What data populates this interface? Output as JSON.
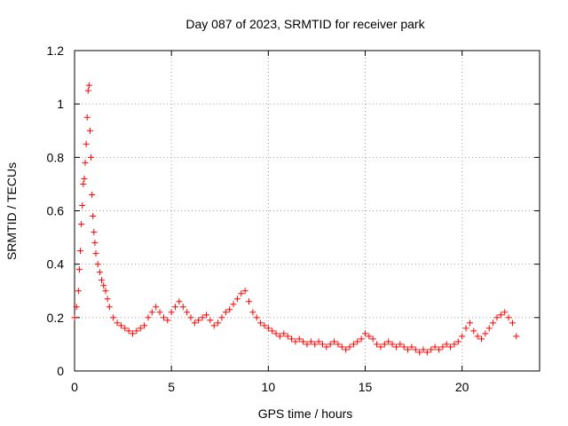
{
  "chart_data": {
    "type": "scatter",
    "title": "Day 087 of 2023, SRMTID for receiver park",
    "xlabel": "GPS time / hours",
    "ylabel": "SRMTID / TECUs",
    "xlim": [
      0,
      24
    ],
    "ylim": [
      0,
      1.2
    ],
    "x_ticks": [
      0,
      5,
      10,
      15,
      20
    ],
    "x_tick_labels": [
      "0",
      "5",
      "10",
      "15",
      "20"
    ],
    "y_ticks": [
      0,
      0.2,
      0.4,
      0.6,
      0.8,
      1.0,
      1.2
    ],
    "y_tick_labels": [
      "0",
      "0.2",
      "0.4",
      "0.6",
      "0.8",
      "1",
      "1.2"
    ],
    "grid": true,
    "marker": "+",
    "color": "#ff0000",
    "series": [
      {
        "name": "SRMTID",
        "x": [
          0.0,
          0.1,
          0.2,
          0.25,
          0.3,
          0.35,
          0.4,
          0.45,
          0.5,
          0.55,
          0.6,
          0.65,
          0.7,
          0.75,
          0.8,
          0.85,
          0.9,
          0.95,
          1.0,
          1.05,
          1.1,
          1.2,
          1.3,
          1.4,
          1.5,
          1.6,
          1.7,
          1.8,
          2.0,
          2.2,
          2.4,
          2.6,
          2.8,
          3.0,
          3.2,
          3.4,
          3.6,
          3.8,
          4.0,
          4.2,
          4.4,
          4.6,
          4.8,
          5.0,
          5.2,
          5.4,
          5.6,
          5.8,
          6.0,
          6.2,
          6.4,
          6.6,
          6.8,
          7.0,
          7.2,
          7.4,
          7.6,
          7.8,
          8.0,
          8.2,
          8.4,
          8.6,
          8.8,
          9.0,
          9.2,
          9.4,
          9.6,
          9.8,
          10.0,
          10.2,
          10.4,
          10.6,
          10.8,
          11.0,
          11.2,
          11.4,
          11.6,
          11.8,
          12.0,
          12.2,
          12.4,
          12.6,
          12.8,
          13.0,
          13.2,
          13.4,
          13.6,
          13.8,
          14.0,
          14.2,
          14.4,
          14.6,
          14.8,
          15.0,
          15.2,
          15.4,
          15.6,
          15.8,
          16.0,
          16.2,
          16.4,
          16.6,
          16.8,
          17.0,
          17.2,
          17.4,
          17.6,
          17.8,
          18.0,
          18.2,
          18.4,
          18.6,
          18.8,
          19.0,
          19.2,
          19.4,
          19.6,
          19.8,
          20.0,
          20.2,
          20.4,
          20.6,
          20.8,
          21.0,
          21.2,
          21.4,
          21.6,
          21.8,
          22.0,
          22.2,
          22.4,
          22.6,
          22.8
        ],
        "y": [
          0.2,
          0.24,
          0.3,
          0.38,
          0.45,
          0.55,
          0.62,
          0.7,
          0.72,
          0.78,
          0.85,
          0.95,
          1.05,
          1.07,
          0.9,
          0.8,
          0.66,
          0.58,
          0.52,
          0.48,
          0.44,
          0.4,
          0.37,
          0.34,
          0.32,
          0.3,
          0.27,
          0.24,
          0.2,
          0.18,
          0.17,
          0.16,
          0.15,
          0.14,
          0.15,
          0.16,
          0.17,
          0.2,
          0.22,
          0.24,
          0.22,
          0.2,
          0.19,
          0.22,
          0.24,
          0.26,
          0.24,
          0.22,
          0.2,
          0.18,
          0.19,
          0.2,
          0.21,
          0.19,
          0.17,
          0.18,
          0.2,
          0.22,
          0.23,
          0.25,
          0.27,
          0.29,
          0.3,
          0.26,
          0.22,
          0.2,
          0.18,
          0.17,
          0.16,
          0.15,
          0.14,
          0.13,
          0.14,
          0.13,
          0.12,
          0.11,
          0.12,
          0.11,
          0.1,
          0.11,
          0.1,
          0.11,
          0.1,
          0.09,
          0.1,
          0.11,
          0.1,
          0.09,
          0.08,
          0.09,
          0.1,
          0.11,
          0.12,
          0.14,
          0.13,
          0.12,
          0.1,
          0.09,
          0.1,
          0.11,
          0.1,
          0.09,
          0.1,
          0.09,
          0.08,
          0.09,
          0.08,
          0.07,
          0.08,
          0.07,
          0.08,
          0.09,
          0.08,
          0.09,
          0.1,
          0.09,
          0.1,
          0.11,
          0.13,
          0.16,
          0.18,
          0.15,
          0.13,
          0.12,
          0.14,
          0.16,
          0.18,
          0.2,
          0.21,
          0.22,
          0.2,
          0.18,
          0.13
        ]
      }
    ]
  }
}
